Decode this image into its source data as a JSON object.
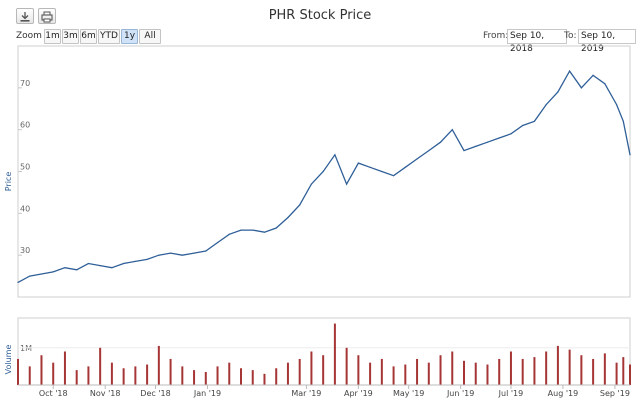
{
  "toolbar": {
    "title": "PHR Stock Price",
    "zoom_label": "Zoom",
    "zoom_buttons": [
      "1m",
      "3m",
      "6m",
      "YTD",
      "1y",
      "All"
    ],
    "active_zoom": "1y",
    "from_label": "From:",
    "from_value": "Sep 10, 2018",
    "to_label": "To:",
    "to_value": "Sep 10, 2019",
    "download_icon": "download-icon",
    "print_icon": "print-icon"
  },
  "chart_data": [
    {
      "type": "line",
      "title": "PHR Stock Price",
      "ylabel": "Price",
      "ylim": [
        20,
        80
      ],
      "yticks": [
        30,
        40,
        50,
        60,
        70
      ],
      "x_tick_labels": [
        "Oct '18",
        "Nov '18",
        "Dec '18",
        "Jan '19",
        "Mar '19",
        "Apr '19",
        "May '19",
        "Jun '19",
        "Jul '19",
        "Aug '19",
        "Sep '19"
      ],
      "x_tick_dates": [
        "2018-10-01",
        "2018-11-01",
        "2018-12-01",
        "2019-01-01",
        "2019-03-01",
        "2019-04-01",
        "2019-05-01",
        "2019-06-01",
        "2019-07-01",
        "2019-08-01",
        "2019-09-01"
      ],
      "xlim": [
        "2018-09-10",
        "2019-09-10"
      ],
      "color": "#2f5f98",
      "series": [
        {
          "x": [
            "2018-09-10",
            "2018-09-17",
            "2018-09-24",
            "2018-10-01",
            "2018-10-08",
            "2018-10-15",
            "2018-10-22",
            "2018-10-29",
            "2018-11-05",
            "2018-11-12",
            "2018-11-19",
            "2018-11-26",
            "2018-12-03",
            "2018-12-10",
            "2018-12-17",
            "2018-12-24",
            "2018-12-31",
            "2019-01-07",
            "2019-01-14",
            "2019-01-21",
            "2019-01-28",
            "2019-02-04",
            "2019-02-11",
            "2019-02-18",
            "2019-02-25",
            "2019-03-04",
            "2019-03-11",
            "2019-03-18",
            "2019-03-25",
            "2019-04-01",
            "2019-04-08",
            "2019-04-15",
            "2019-04-22",
            "2019-04-29",
            "2019-05-06",
            "2019-05-13",
            "2019-05-20",
            "2019-05-27",
            "2019-06-03",
            "2019-06-10",
            "2019-06-17",
            "2019-06-24",
            "2019-07-01",
            "2019-07-08",
            "2019-07-15",
            "2019-07-22",
            "2019-07-29",
            "2019-08-05",
            "2019-08-12",
            "2019-08-19",
            "2019-08-26",
            "2019-09-02",
            "2019-09-06",
            "2019-09-10"
          ],
          "values": [
            23.5,
            25,
            25.5,
            26,
            27,
            26.5,
            28,
            27.5,
            27,
            28,
            28.5,
            29,
            30,
            30.5,
            30,
            30.5,
            31,
            33,
            35,
            36,
            36,
            35.5,
            36.5,
            39,
            42,
            47,
            50,
            54,
            47,
            52,
            51,
            50,
            49,
            51,
            53,
            55,
            57,
            60,
            55,
            56,
            57,
            58,
            59,
            61,
            62,
            66,
            69,
            74,
            70,
            73,
            71,
            66,
            62,
            54
          ]
        }
      ]
    },
    {
      "type": "bar",
      "title": "",
      "ylabel": "Volume",
      "yticks_label": "1M",
      "ylim": [
        0,
        1800000
      ],
      "color": "#a63535",
      "series": [
        {
          "x": [
            "2018-09-10",
            "2018-09-17",
            "2018-09-24",
            "2018-10-01",
            "2018-10-08",
            "2018-10-15",
            "2018-10-22",
            "2018-10-29",
            "2018-11-05",
            "2018-11-12",
            "2018-11-19",
            "2018-11-26",
            "2018-12-03",
            "2018-12-10",
            "2018-12-17",
            "2018-12-24",
            "2018-12-31",
            "2019-01-07",
            "2019-01-14",
            "2019-01-21",
            "2019-01-28",
            "2019-02-04",
            "2019-02-11",
            "2019-02-18",
            "2019-02-25",
            "2019-03-04",
            "2019-03-11",
            "2019-03-18",
            "2019-03-25",
            "2019-04-01",
            "2019-04-08",
            "2019-04-15",
            "2019-04-22",
            "2019-04-29",
            "2019-05-06",
            "2019-05-13",
            "2019-05-20",
            "2019-05-27",
            "2019-06-03",
            "2019-06-10",
            "2019-06-17",
            "2019-06-24",
            "2019-07-01",
            "2019-07-08",
            "2019-07-15",
            "2019-07-22",
            "2019-07-29",
            "2019-08-05",
            "2019-08-12",
            "2019-08-19",
            "2019-08-26",
            "2019-09-02",
            "2019-09-06",
            "2019-09-10"
          ],
          "values": [
            700000,
            500000,
            800000,
            600000,
            900000,
            400000,
            500000,
            1000000,
            600000,
            450000,
            500000,
            550000,
            1050000,
            700000,
            500000,
            400000,
            350000,
            500000,
            600000,
            450000,
            400000,
            300000,
            450000,
            600000,
            700000,
            900000,
            800000,
            1650000,
            1000000,
            800000,
            600000,
            700000,
            500000,
            550000,
            700000,
            600000,
            800000,
            900000,
            650000,
            600000,
            550000,
            700000,
            900000,
            700000,
            750000,
            900000,
            1050000,
            950000,
            800000,
            700000,
            850000,
            600000,
            750000,
            550000
          ]
        }
      ]
    }
  ]
}
